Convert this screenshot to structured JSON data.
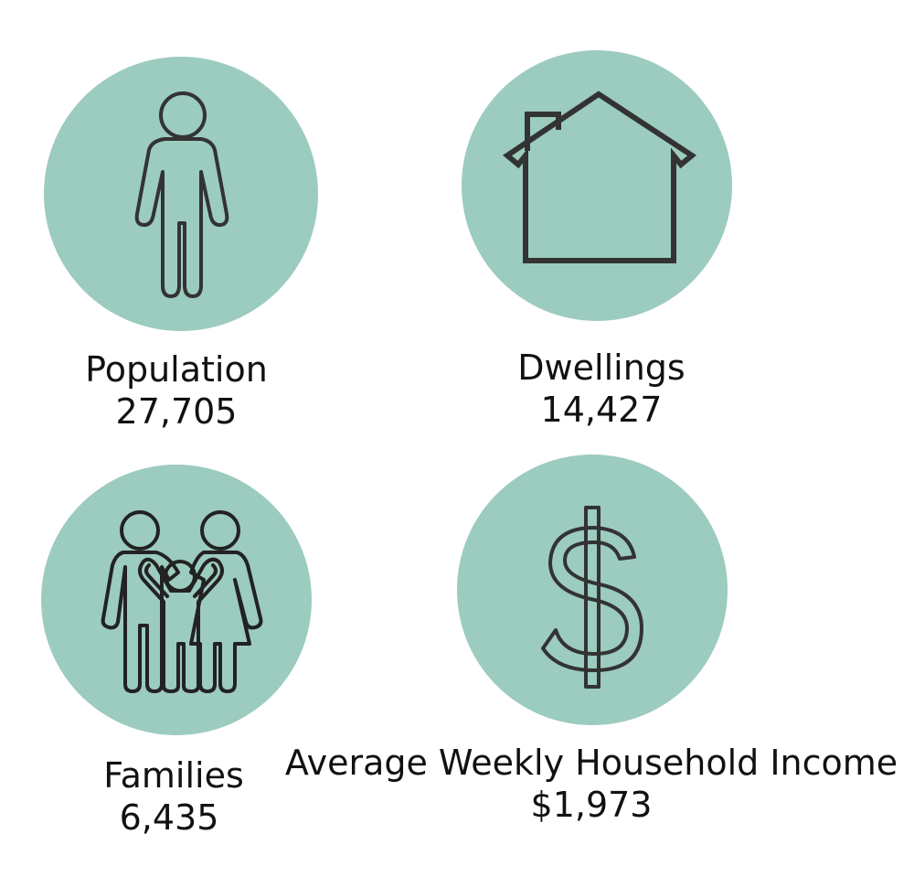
{
  "colors": {
    "circle": "#9ccbbf",
    "stroke": "#333333",
    "text": "#111111"
  },
  "stats": [
    {
      "icon": "person-icon",
      "label": "Population",
      "value": "27,705"
    },
    {
      "icon": "house-icon",
      "label": "Dwellings",
      "value": "14,427"
    },
    {
      "icon": "family-icon",
      "label": "Families",
      "value": "6,435"
    },
    {
      "icon": "dollar-icon",
      "label": "Average Weekly Household Income",
      "value": "$1,973"
    }
  ]
}
